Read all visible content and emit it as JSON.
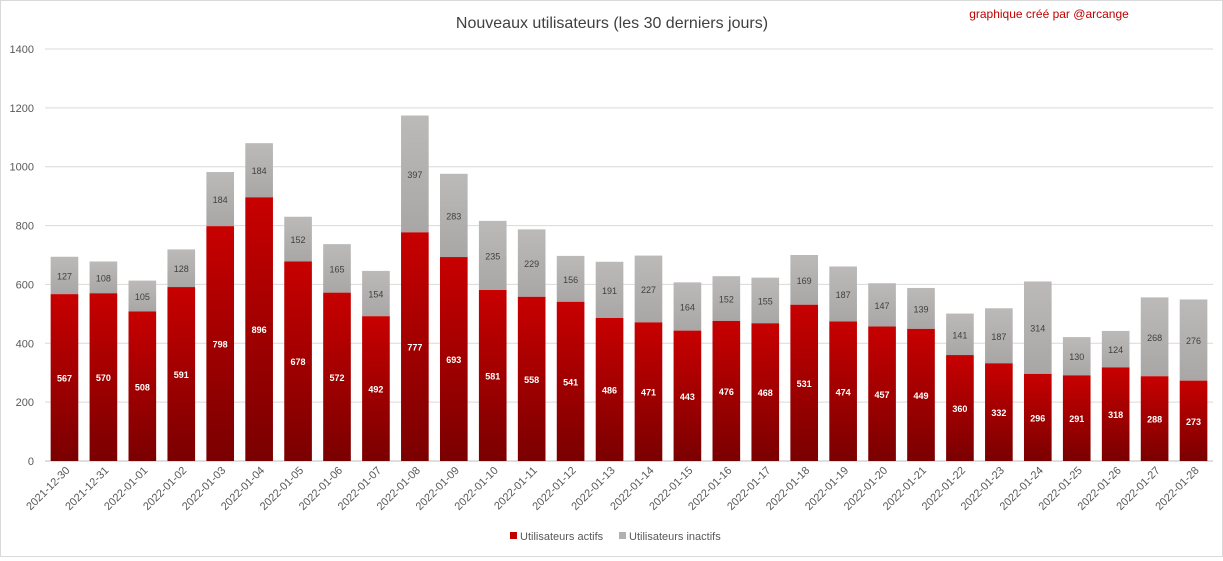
{
  "chart_data": {
    "type": "bar",
    "stacked": true,
    "title": "Nouveaux utilisateurs  (les 30 derniers  jours)",
    "credit": "graphique créé par @arcange",
    "xlabel": "",
    "ylabel": "",
    "ylim": [
      0,
      1400
    ],
    "yticks": [
      0,
      200,
      400,
      600,
      800,
      1000,
      1200,
      1400
    ],
    "grid": true,
    "legend_position": "bottom",
    "categories": [
      "2021-12-30",
      "2021-12-31",
      "2022-01-01",
      "2022-01-02",
      "2022-01-03",
      "2022-01-04",
      "2022-01-05",
      "2022-01-06",
      "2022-01-07",
      "2022-01-08",
      "2022-01-09",
      "2022-01-10",
      "2022-01-11",
      "2022-01-12",
      "2022-01-13",
      "2022-01-14",
      "2022-01-15",
      "2022-01-16",
      "2022-01-17",
      "2022-01-18",
      "2022-01-19",
      "2022-01-20",
      "2022-01-21",
      "2022-01-22",
      "2022-01-23",
      "2022-01-24",
      "2022-01-25",
      "2022-01-26",
      "2022-01-27",
      "2022-01-28"
    ],
    "series": [
      {
        "name": "Utilisateurs actifs",
        "color": "#c00000",
        "values": [
          567,
          570,
          508,
          591,
          798,
          896,
          678,
          572,
          492,
          777,
          693,
          581,
          558,
          541,
          486,
          471,
          443,
          476,
          468,
          531,
          474,
          457,
          449,
          360,
          332,
          296,
          291,
          318,
          288,
          273
        ]
      },
      {
        "name": "Utilisateurs inactifs",
        "color": "#b3b0b0",
        "values": [
          127,
          108,
          105,
          128,
          184,
          184,
          152,
          165,
          154,
          397,
          283,
          235,
          229,
          156,
          191,
          227,
          164,
          152,
          155,
          169,
          187,
          147,
          139,
          141,
          187,
          314,
          130,
          124,
          268,
          276
        ]
      }
    ]
  }
}
